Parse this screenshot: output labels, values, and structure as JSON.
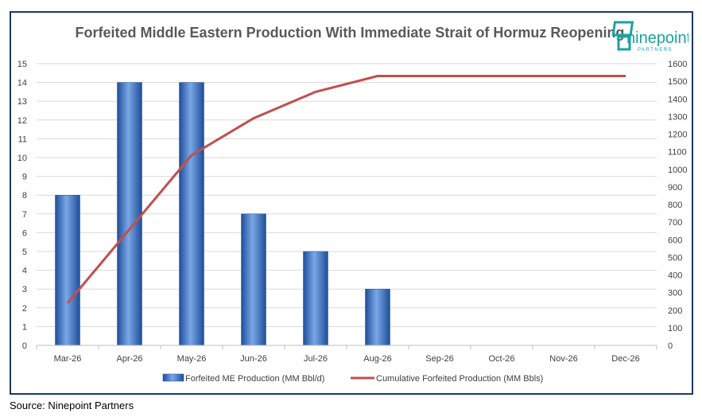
{
  "title": "Forfeited Middle Eastern Production With Immediate Strait of Hormuz Reopening",
  "logo": {
    "name": "ninepoint",
    "sub": "PARTNERS"
  },
  "source": "Source: Ninepoint Partners",
  "colors": {
    "bar": "#3a70c8",
    "bar_dark": "#1f4e9a",
    "bar_light": "#7aa7e6",
    "line": "#c0504d",
    "grid": "#d9d9d9",
    "frame": "#1f3864",
    "logo": "#1aa3a0"
  },
  "chart_data": {
    "type": "bar",
    "categories": [
      "Mar-26",
      "Apr-26",
      "May-26",
      "Jun-26",
      "Jul-26",
      "Aug-26",
      "Sep-26",
      "Oct-26",
      "Nov-26",
      "Dec-26"
    ],
    "series": [
      {
        "name": "Forfeited ME Production (MM Bbl/d)",
        "type": "bar",
        "axis": "left",
        "values": [
          8,
          14,
          14,
          7,
          5,
          3,
          0,
          0,
          0,
          0
        ]
      },
      {
        "name": "Cumulative Forfeited Production (MM Bbls)",
        "type": "line",
        "axis": "right",
        "values": [
          240,
          660,
          1080,
          1290,
          1440,
          1530,
          1530,
          1530,
          1530,
          1530
        ]
      }
    ],
    "ylim": [
      0,
      15
    ],
    "yticks": [
      0,
      1,
      2,
      3,
      4,
      5,
      6,
      7,
      8,
      9,
      10,
      11,
      12,
      13,
      14,
      15
    ],
    "y2lim": [
      0,
      1600
    ],
    "y2ticks": [
      0,
      100,
      200,
      300,
      400,
      500,
      600,
      700,
      800,
      900,
      1000,
      1100,
      1200,
      1300,
      1400,
      1500,
      1600
    ],
    "grid": true,
    "legend_position": "bottom"
  }
}
